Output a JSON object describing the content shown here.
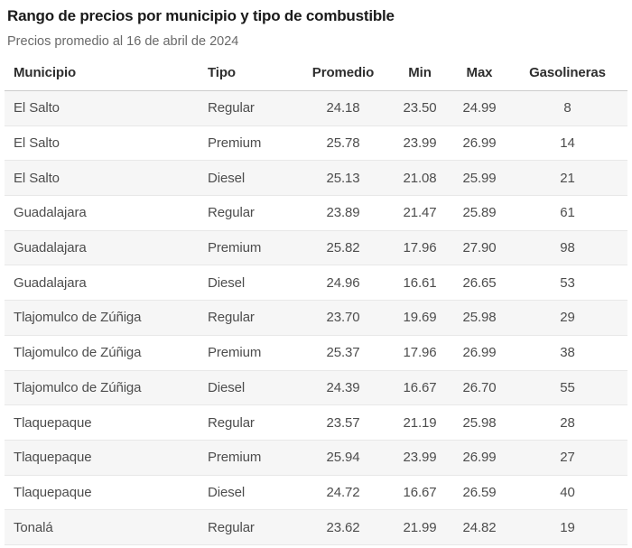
{
  "header": {
    "title": "Rango de precios por municipio y tipo de combustible",
    "subtitle": "Precios promedio al 16 de abril de 2024"
  },
  "chart_data": {
    "type": "table",
    "title": "Rango de precios por municipio y tipo de combustible",
    "subtitle": "Precios promedio al 16 de abril de 2024",
    "columns": [
      "Municipio",
      "Tipo",
      "Promedio",
      "Min",
      "Max",
      "Gasolineras"
    ],
    "column_alignment": [
      "left",
      "left",
      "center",
      "center",
      "center",
      "center"
    ],
    "zebra_striping": "odd rows shaded",
    "rows": [
      [
        "El Salto",
        "Regular",
        "24.18",
        "23.50",
        "24.99",
        "8"
      ],
      [
        "El Salto",
        "Premium",
        "25.78",
        "23.99",
        "26.99",
        "14"
      ],
      [
        "El Salto",
        "Diesel",
        "25.13",
        "21.08",
        "25.99",
        "21"
      ],
      [
        "Guadalajara",
        "Regular",
        "23.89",
        "21.47",
        "25.89",
        "61"
      ],
      [
        "Guadalajara",
        "Premium",
        "25.82",
        "17.96",
        "27.90",
        "98"
      ],
      [
        "Guadalajara",
        "Diesel",
        "24.96",
        "16.61",
        "26.65",
        "53"
      ],
      [
        "Tlajomulco de Zúñiga",
        "Regular",
        "23.70",
        "19.69",
        "25.98",
        "29"
      ],
      [
        "Tlajomulco de Zúñiga",
        "Premium",
        "25.37",
        "17.96",
        "26.99",
        "38"
      ],
      [
        "Tlajomulco de Zúñiga",
        "Diesel",
        "24.39",
        "16.67",
        "26.70",
        "55"
      ],
      [
        "Tlaquepaque",
        "Regular",
        "23.57",
        "21.19",
        "25.98",
        "28"
      ],
      [
        "Tlaquepaque",
        "Premium",
        "25.94",
        "23.99",
        "26.99",
        "27"
      ],
      [
        "Tlaquepaque",
        "Diesel",
        "24.72",
        "16.67",
        "26.59",
        "40"
      ],
      [
        "Tonalá",
        "Regular",
        "23.62",
        "21.99",
        "24.82",
        "19"
      ]
    ]
  },
  "colors": {
    "title_text": "#1a1a1a",
    "subtitle_text": "#696969",
    "header_text": "#2e2e2e",
    "body_text": "#4d4d4d",
    "zebra_row_background": "#f6f6f6",
    "row_border": "#e8e8e8",
    "header_border": "#cccccc",
    "page_background": "#ffffff"
  }
}
